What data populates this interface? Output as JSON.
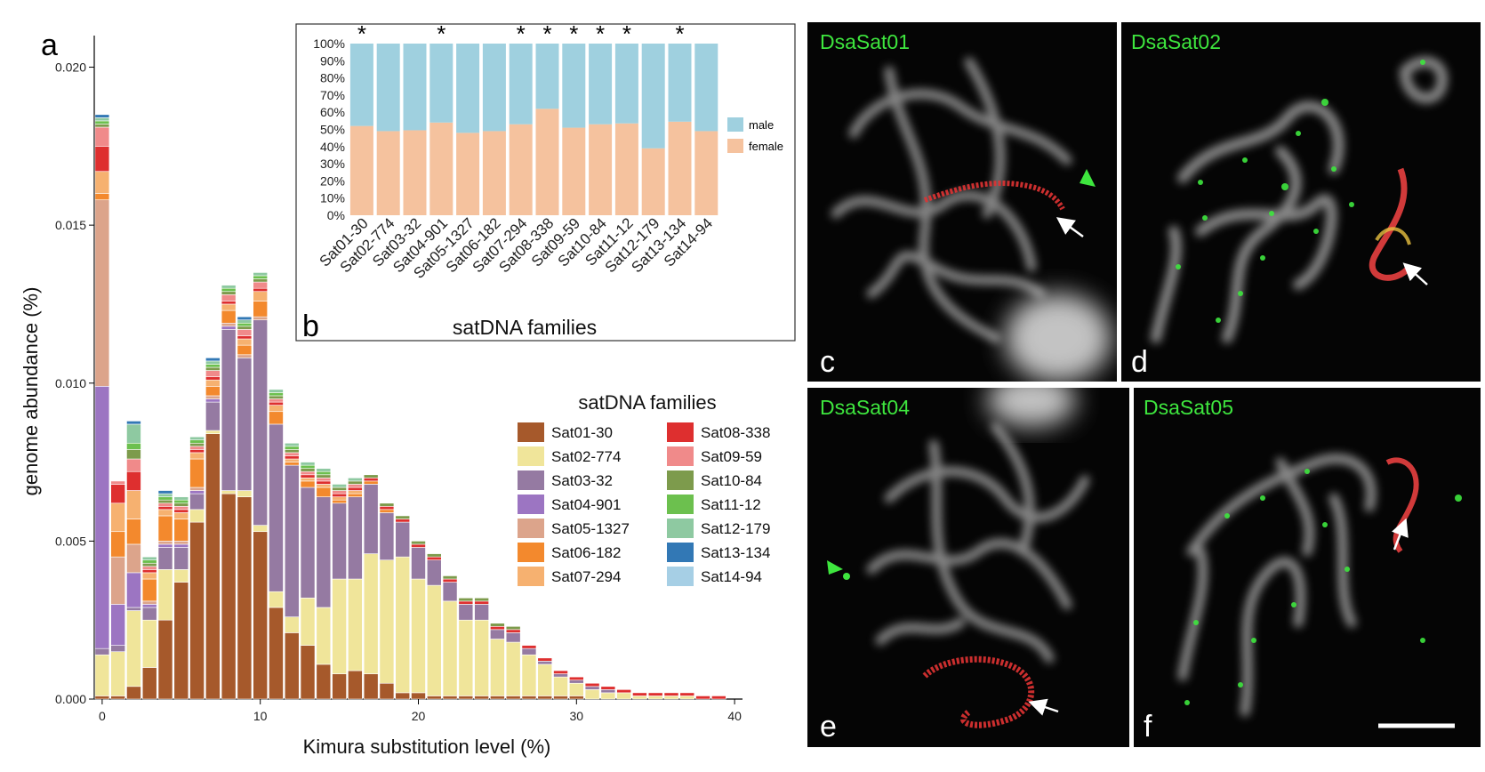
{
  "figure": {
    "panel_labels": [
      "a",
      "b"
    ],
    "micro_panels": [
      {
        "letter": "c",
        "probe": "DsaSat01"
      },
      {
        "letter": "d",
        "probe": "DsaSat02"
      },
      {
        "letter": "e",
        "probe": "DsaSat04"
      },
      {
        "letter": "f",
        "probe": "DsaSat05"
      }
    ]
  },
  "chart_data": [
    {
      "type": "bar",
      "stacked": true,
      "panel": "a",
      "xlabel": "Kimura substitution level (%)",
      "ylabel": "genome abundance (%)",
      "xticks": [
        "0",
        "10",
        "20",
        "30",
        "40"
      ],
      "yticks": [
        "0.000",
        "0.005",
        "0.010",
        "0.015",
        "0.020"
      ],
      "xlim": [
        -0.5,
        40.5
      ],
      "ylim": [
        0,
        0.021
      ],
      "legend_title": "satDNA families",
      "legend_position": "right",
      "x": [
        0,
        1,
        2,
        3,
        4,
        5,
        6,
        7,
        8,
        9,
        10,
        11,
        12,
        13,
        14,
        15,
        16,
        17,
        18,
        19,
        20,
        21,
        22,
        23,
        24,
        25,
        26,
        27,
        28,
        29,
        30,
        31,
        32,
        33,
        34,
        35,
        36,
        37,
        38,
        39
      ],
      "series": [
        {
          "name": "Sat01-30",
          "color": "#a6592b",
          "values": [
            0.0001,
            0.0001,
            0.0004,
            0.001,
            0.0025,
            0.0037,
            0.0056,
            0.0084,
            0.0065,
            0.0064,
            0.0053,
            0.0029,
            0.0021,
            0.0017,
            0.0011,
            0.0008,
            0.0009,
            0.0008,
            0.0005,
            0.0002,
            0.0002,
            0.0001,
            0.0001,
            0.0001,
            0.0001,
            0.0001,
            0.0001,
            0.0001,
            0.0001,
            0.0001,
            0.0001,
            0,
            0,
            0,
            0,
            0,
            0,
            0,
            0,
            0
          ]
        },
        {
          "name": "Sat02-774",
          "color": "#f0e59a",
          "values": [
            0.0013,
            0.0014,
            0.0024,
            0.0015,
            0.0016,
            0.0004,
            0.0004,
            0.0001,
            0.0001,
            0.0002,
            0.0002,
            0.0005,
            0.0005,
            0.0015,
            0.0018,
            0.003,
            0.0029,
            0.0038,
            0.0039,
            0.0043,
            0.0036,
            0.0035,
            0.003,
            0.0024,
            0.0024,
            0.0018,
            0.0017,
            0.0013,
            0.001,
            0.0006,
            0.0004,
            0.0003,
            0.0002,
            0.0002,
            0.0001,
            0.0001,
            0.0001,
            0.0001,
            0,
            0
          ]
        },
        {
          "name": "Sat03-32",
          "color": "#957aa2",
          "values": [
            0.0002,
            0.0002,
            0.0001,
            0.0004,
            0.0007,
            0.0007,
            0.0005,
            0.0009,
            0.0051,
            0.0042,
            0.0065,
            0.0053,
            0.0048,
            0.0035,
            0.0035,
            0.0024,
            0.0026,
            0.0022,
            0.0015,
            0.0011,
            0.001,
            0.0008,
            0.0006,
            0.0005,
            0.0005,
            0.0003,
            0.0003,
            0.0002,
            0.0001,
            0.0001,
            0.0001,
            0.0001,
            0.0001,
            0,
            0,
            0,
            0,
            0,
            0,
            0
          ]
        },
        {
          "name": "Sat04-901",
          "color": "#9c75c2",
          "values": [
            0.0083,
            0.0013,
            0.0011,
            0.0001,
            0.0001,
            0.0001,
            0.0001,
            0.0001,
            0.0001,
            0,
            0,
            0,
            0,
            0,
            0,
            0,
            0,
            0,
            0,
            0,
            0,
            0,
            0,
            0,
            0,
            0,
            0,
            0,
            0,
            0,
            0,
            0,
            0,
            0,
            0,
            0,
            0,
            0,
            0,
            0
          ]
        },
        {
          "name": "Sat05-1327",
          "color": "#dca48b",
          "values": [
            0.0059,
            0.0015,
            0.0009,
            0.0001,
            0.0001,
            0.0001,
            0.0001,
            0.0001,
            0.0001,
            0.0001,
            0.0001,
            0,
            0,
            0,
            0,
            0,
            0,
            0,
            0,
            0,
            0,
            0,
            0,
            0,
            0,
            0,
            0,
            0,
            0,
            0,
            0,
            0,
            0,
            0,
            0,
            0,
            0,
            0,
            0,
            0
          ]
        },
        {
          "name": "Sat06-182",
          "color": "#f3892d",
          "values": [
            0.0002,
            0.0008,
            0.0008,
            0.0007,
            0.0008,
            0.0007,
            0.0009,
            0.0003,
            0.0004,
            0.0003,
            0.0005,
            0.0004,
            0.0001,
            0.0002,
            0.0003,
            0.0001,
            0.0001,
            0.0001,
            0.0001,
            0,
            0,
            0,
            0,
            0,
            0,
            0,
            0,
            0,
            0,
            0,
            0,
            0,
            0,
            0,
            0,
            0,
            0,
            0,
            0,
            0
          ]
        },
        {
          "name": "Sat07-294",
          "color": "#f6b170",
          "values": [
            0.0007,
            0.0009,
            0.0009,
            0.0002,
            0.0002,
            0.0002,
            0.0002,
            0.0002,
            0.0002,
            0.0002,
            0.0003,
            0.0002,
            0.0001,
            0.0001,
            0.0001,
            0.0001,
            0.0001,
            0,
            0,
            0,
            0,
            0,
            0,
            0,
            0,
            0,
            0,
            0,
            0,
            0,
            0,
            0,
            0,
            0,
            0,
            0,
            0,
            0,
            0,
            0
          ]
        },
        {
          "name": "Sat08-338",
          "color": "#de2f2f",
          "values": [
            0.0008,
            0.0006,
            0.0006,
            0.0001,
            0.0001,
            0.0001,
            0.0001,
            0.0001,
            0.0001,
            0.0001,
            0.0001,
            0.0001,
            0.0001,
            0.0001,
            0.0001,
            0.0001,
            0.0001,
            0.0001,
            0.0001,
            0.0001,
            0.0001,
            0.0001,
            0.0001,
            0.0001,
            0.0001,
            0.0001,
            0.0001,
            0.0001,
            0.0001,
            0.0001,
            0.0001,
            0.0001,
            0.0001,
            0.0001,
            0.0001,
            0.0001,
            0.0001,
            0.0001,
            0.0001,
            0.0001
          ]
        },
        {
          "name": "Sat09-59",
          "color": "#f08a8a",
          "values": [
            0.0006,
            0.0001,
            0.0004,
            0.0001,
            0.0001,
            0.0001,
            0.0001,
            0.0002,
            0.0002,
            0.0002,
            0.0002,
            0.0001,
            0.0001,
            0.0001,
            0.0001,
            0.0001,
            0.0001,
            0,
            0,
            0,
            0,
            0,
            0,
            0,
            0,
            0,
            0,
            0,
            0,
            0,
            0,
            0,
            0,
            0,
            0,
            0,
            0,
            0,
            0,
            0
          ]
        },
        {
          "name": "Sat10-84",
          "color": "#7d9b4c",
          "values": [
            0.0001,
            0,
            0.0003,
            0.0001,
            0.0001,
            0.0001,
            0.0001,
            0.0001,
            0.0001,
            0.0001,
            0.0001,
            0.0001,
            0.0001,
            0.0001,
            0.0001,
            0.0001,
            0.0001,
            0.0001,
            0.0001,
            0.0001,
            0.0001,
            0.0001,
            0.0001,
            0.0001,
            0.0001,
            0.0001,
            0.0001,
            0,
            0,
            0,
            0,
            0,
            0,
            0,
            0,
            0,
            0,
            0,
            0,
            0
          ]
        },
        {
          "name": "Sat11-12",
          "color": "#6cc04e",
          "values": [
            0.0001,
            0,
            0.0002,
            0.0001,
            0.0001,
            0.0001,
            0.0001,
            0.0001,
            0.0001,
            0.0001,
            0.0001,
            0.0001,
            0.0001,
            0.0001,
            0.0001,
            0,
            0,
            0,
            0,
            0,
            0,
            0,
            0,
            0,
            0,
            0,
            0,
            0,
            0,
            0,
            0,
            0,
            0,
            0,
            0,
            0,
            0,
            0,
            0,
            0
          ]
        },
        {
          "name": "Sat12-179",
          "color": "#8ec9a1",
          "values": [
            0.0001,
            0,
            0.0006,
            0.0001,
            0.0001,
            0.0001,
            0.0001,
            0.0001,
            0.0001,
            0.0001,
            0.0001,
            0.0001,
            0.0001,
            0.0001,
            0.0001,
            0.0001,
            0.0001,
            0,
            0,
            0,
            0,
            0,
            0,
            0,
            0,
            0,
            0,
            0,
            0,
            0,
            0,
            0,
            0,
            0,
            0,
            0,
            0,
            0,
            0,
            0
          ]
        },
        {
          "name": "Sat13-134",
          "color": "#3278b5",
          "values": [
            0.0001,
            0,
            0.0001,
            0,
            0.0001,
            0,
            0,
            0.0001,
            0,
            0.0001,
            0,
            0,
            0,
            0,
            0,
            0,
            0,
            0,
            0,
            0,
            0,
            0,
            0,
            0,
            0,
            0,
            0,
            0,
            0,
            0,
            0,
            0,
            0,
            0,
            0,
            0,
            0,
            0,
            0,
            0
          ]
        },
        {
          "name": "Sat14-94",
          "color": "#a6cfe5",
          "values": [
            0,
            0,
            0,
            0,
            0,
            0,
            0,
            0,
            0,
            0,
            0,
            0,
            0,
            0,
            0,
            0,
            0,
            0,
            0,
            0,
            0,
            0,
            0,
            0,
            0,
            0,
            0,
            0,
            0,
            0,
            0,
            0,
            0,
            0,
            0,
            0,
            0,
            0,
            0,
            0
          ]
        }
      ]
    },
    {
      "type": "bar",
      "stacked": true,
      "percent": true,
      "panel": "b",
      "xlabel": "satDNA families",
      "ylabel": "",
      "yticks": [
        "0%",
        "10%",
        "20%",
        "30%",
        "40%",
        "50%",
        "60%",
        "70%",
        "80%",
        "90%",
        "100%"
      ],
      "ylim": [
        0,
        100
      ],
      "legend_position": "right",
      "categories": [
        "Sat01-30",
        "Sat02-774",
        "Sat03-32",
        "Sat04-901",
        "Sat05-1327",
        "Sat06-182",
        "Sat07-294",
        "Sat08-338",
        "Sat09-59",
        "Sat10-84",
        "Sat11-12",
        "Sat12-179",
        "Sat13-134",
        "Sat14-94"
      ],
      "significance": [
        "*",
        "",
        "",
        "*",
        "",
        "",
        "*",
        "*",
        "*",
        "*",
        "*",
        "",
        "*",
        ""
      ],
      "series": [
        {
          "name": "female",
          "color": "#f5c29e",
          "values": [
            52,
            49,
            49.5,
            54,
            48,
            49,
            53,
            62,
            51,
            53,
            53.5,
            39,
            54.5,
            49
          ]
        },
        {
          "name": "male",
          "color": "#9fd0df",
          "values": [
            48,
            51,
            50.5,
            46,
            52,
            51,
            47,
            38,
            49,
            47,
            46.5,
            61,
            45.5,
            51
          ]
        }
      ]
    }
  ]
}
